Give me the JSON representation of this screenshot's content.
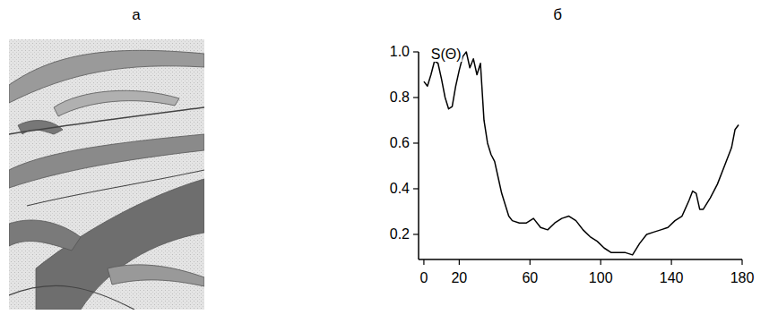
{
  "panels": {
    "left_label": "а",
    "right_label": "б"
  },
  "chart_data": {
    "type": "line",
    "title": "S(Θ)",
    "x": [
      0,
      2,
      4,
      6,
      8,
      10,
      12,
      14,
      16,
      18,
      20,
      22,
      24,
      26,
      28,
      30,
      32,
      34,
      36,
      38,
      40,
      42,
      44,
      46,
      48,
      50,
      54,
      58,
      62,
      66,
      70,
      74,
      78,
      82,
      86,
      90,
      94,
      98,
      102,
      106,
      110,
      114,
      118,
      122,
      126,
      130,
      134,
      138,
      142,
      146,
      150,
      152,
      154,
      156,
      158,
      162,
      166,
      170,
      174,
      176,
      178
    ],
    "values": [
      0.87,
      0.85,
      0.9,
      0.96,
      0.95,
      0.88,
      0.8,
      0.75,
      0.76,
      0.85,
      0.92,
      0.98,
      1.0,
      0.93,
      0.97,
      0.9,
      0.95,
      0.7,
      0.6,
      0.55,
      0.52,
      0.45,
      0.38,
      0.33,
      0.28,
      0.26,
      0.25,
      0.25,
      0.27,
      0.23,
      0.22,
      0.25,
      0.27,
      0.28,
      0.26,
      0.22,
      0.19,
      0.17,
      0.14,
      0.12,
      0.12,
      0.12,
      0.11,
      0.16,
      0.2,
      0.21,
      0.22,
      0.23,
      0.26,
      0.28,
      0.35,
      0.39,
      0.38,
      0.31,
      0.31,
      0.36,
      0.42,
      0.5,
      0.58,
      0.66,
      0.68
    ],
    "color": "#000000",
    "xlim": [
      -3,
      180
    ],
    "xticks": [
      0,
      20,
      60,
      100,
      140,
      180
    ],
    "ylim": [
      0.09,
      1.0
    ],
    "yticks": [
      0.2,
      0.4,
      0.6,
      0.8,
      {
        "value": 1,
        "label": "1.0"
      }
    ],
    "grid": false
  }
}
